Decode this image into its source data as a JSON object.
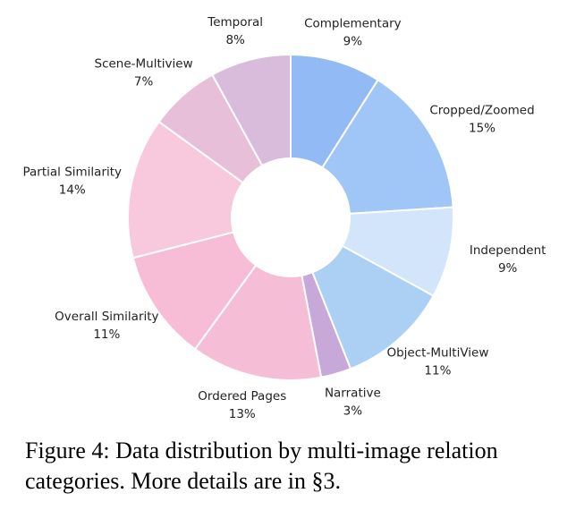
{
  "chart_data": {
    "type": "donut",
    "categories": [
      "Complementary",
      "Cropped/Zoomed",
      "Independent",
      "Object-MultiView",
      "Narrative",
      "Ordered Pages",
      "Overall Similarity",
      "Partial Similarity",
      "Scene-Multiview",
      "Temporal"
    ],
    "values": [
      9,
      15,
      9,
      11,
      3,
      13,
      11,
      14,
      7,
      8
    ],
    "value_labels": [
      "9%",
      "15%",
      "9%",
      "11%",
      "3%",
      "13%",
      "11%",
      "14%",
      "7%",
      "8%"
    ],
    "colors": [
      "#92baf4",
      "#9fc6f6",
      "#d2e5fb",
      "#acd0f3",
      "#c7a8d9",
      "#f5bdd6",
      "#f7bdd7",
      "#f8c8dc",
      "#e8bfd9",
      "#d9bbdc"
    ]
  },
  "caption": "Figure 4: Data distribution by multi-image relation categories. More details are in §3."
}
